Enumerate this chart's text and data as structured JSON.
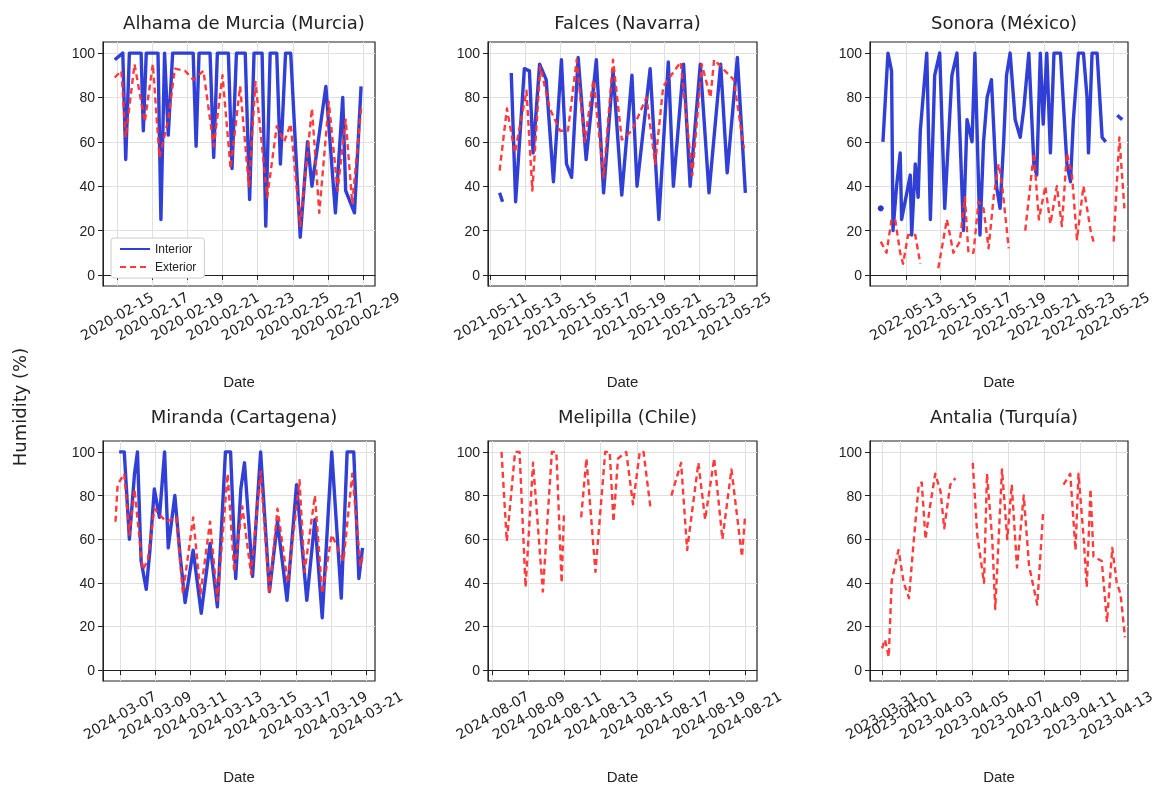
{
  "chart_data": [
    {
      "type": "line",
      "title": "Alhama de Murcia (Murcia)",
      "xlabel": "Date",
      "ylabel": "Humidity (%)",
      "xlim": [
        "2020-02-14T05:00",
        "2020-02-29T16:00"
      ],
      "xticks": [
        "2020-02-15",
        "2020-02-17",
        "2020-02-19",
        "2020-02-21",
        "2020-02-23",
        "2020-02-25",
        "2020-02-27",
        "2020-02-29"
      ],
      "ylim": [
        -5,
        105
      ],
      "yticks": [
        0,
        20,
        40,
        60,
        80,
        100
      ],
      "grid": true,
      "marker": "none",
      "legend": "bottom left",
      "series": [
        {
          "name": "Interior",
          "color": "#2536d4",
          "line_style": "solid",
          "x": [
            "2020-02-14T21:00",
            "2020-02-15T08:00",
            "2020-02-15T12:00",
            "2020-02-15T17:00",
            "2020-02-16T09:00",
            "2020-02-16T12:00",
            "2020-02-16T16:00",
            "2020-02-17T08:00",
            "2020-02-17T12:00",
            "2020-02-17T17:00",
            "2020-02-17T22:00",
            "2020-02-18T04:00",
            "2020-02-19T08:00",
            "2020-02-19T12:00",
            "2020-02-19T16:00",
            "2020-02-20T07:00",
            "2020-02-20T12:00",
            "2020-02-20T17:00",
            "2020-02-21T08:00",
            "2020-02-21T13:00",
            "2020-02-21T19:00",
            "2020-02-22T07:00",
            "2020-02-22T13:00",
            "2020-02-22T19:00",
            "2020-02-23T06:00",
            "2020-02-23T11:00",
            "2020-02-23T17:00",
            "2020-02-24T02:00",
            "2020-02-24T07:00",
            "2020-02-24T14:00",
            "2020-02-24T21:00",
            "2020-02-25T10:00",
            "2020-02-25T20:00",
            "2020-02-26T02:00",
            "2020-02-26T21:00",
            "2020-02-27T10:00",
            "2020-02-27T20:00",
            "2020-02-28T00:00",
            "2020-02-28T12:00",
            "2020-02-28T21:00"
          ],
          "values": [
            97,
            100,
            52,
            100,
            100,
            65,
            100,
            100,
            25,
            100,
            63,
            100,
            100,
            58,
            100,
            100,
            53,
            100,
            100,
            48,
            100,
            100,
            34,
            100,
            100,
            22,
            100,
            100,
            50,
            100,
            100,
            17,
            60,
            40,
            85,
            28,
            80,
            38,
            28,
            85
          ]
        },
        {
          "name": "Exterior",
          "color": "#ff3030",
          "line_style": "dashed",
          "x": [
            "2020-02-14T21:00",
            "2020-02-15T06:00",
            "2020-02-15T12:00",
            "2020-02-16T00:00",
            "2020-02-16T14:00",
            "2020-02-17T01:00",
            "2020-02-17T10:00",
            "2020-02-17T22:00",
            "2020-02-18T07:00",
            "2020-02-18T21:00",
            "2020-02-19T08:00",
            "2020-02-19T22:00",
            "2020-02-20T12:00",
            "2020-02-21T00:00",
            "2020-02-21T11:00",
            "2020-02-22T00:00",
            "2020-02-22T12:00",
            "2020-02-22T21:00",
            "2020-02-23T13:00",
            "2020-02-24T02:00",
            "2020-02-24T12:00",
            "2020-02-24T21:00",
            "2020-02-25T10:00",
            "2020-02-26T02:00",
            "2020-02-26T12:00",
            "2020-02-27T01:00",
            "2020-02-27T13:00",
            "2020-02-28T00:00",
            "2020-02-28T09:00",
            "2020-02-28T21:00"
          ],
          "values": [
            89,
            92,
            62,
            95,
            69,
            95,
            53,
            70,
            93,
            92,
            88,
            92,
            58,
            90,
            48,
            85,
            40,
            87,
            35,
            67,
            60,
            68,
            22,
            75,
            28,
            78,
            38,
            70,
            32,
            75
          ]
        }
      ]
    },
    {
      "type": "line",
      "title": "Falces (Navarra)",
      "xlabel": "Date",
      "xlim": [
        "2021-05-10T21:00",
        "2021-05-26T07:00"
      ],
      "xticks": [
        "2021-05-11",
        "2021-05-13",
        "2021-05-15",
        "2021-05-17",
        "2021-05-19",
        "2021-05-21",
        "2021-05-23",
        "2021-05-25"
      ],
      "ylim": [
        -5,
        105
      ],
      "yticks": [
        0,
        20,
        40,
        60,
        80,
        100
      ],
      "grid": true,
      "marker": "none",
      "series": [
        {
          "color": "#2536d4",
          "line_style": "solid",
          "x": [
            "2021-05-11T13:00",
            "2021-05-11T17:00",
            "2021-05-11T23:00",
            "2021-05-12T05:00",
            "2021-05-12T11:00",
            "2021-05-12T23:00",
            "2021-05-13T06:00",
            "2021-05-13T11:00",
            "2021-05-13T20:00",
            "2021-05-14T05:00",
            "2021-05-14T15:00",
            "2021-05-15T02:00",
            "2021-05-15T09:00",
            "2021-05-15T16:00",
            "2021-05-16T01:00",
            "2021-05-16T12:00",
            "2021-05-17T02:00",
            "2021-05-17T12:00",
            "2021-05-18T01:00",
            "2021-05-18T13:00",
            "2021-05-19T03:00",
            "2021-05-19T10:00",
            "2021-05-20T04:00",
            "2021-05-20T16:00",
            "2021-05-21T05:00",
            "2021-05-21T12:00",
            "2021-05-22T02:00",
            "2021-05-22T11:00",
            "2021-05-23T01:00",
            "2021-05-23T13:00",
            "2021-05-24T05:00",
            "2021-05-24T14:00",
            "2021-05-25T04:00",
            "2021-05-25T15:00"
          ],
          "values": [
            37,
            33,
            null,
            91,
            33,
            93,
            92,
            55,
            95,
            88,
            42,
            97,
            50,
            44,
            98,
            52,
            97,
            37,
            92,
            36,
            90,
            40,
            93,
            25,
            96,
            40,
            95,
            40,
            95,
            37,
            95,
            46,
            98,
            37
          ]
        },
        {
          "color": "#ff3030",
          "line_style": "dashed",
          "x": [
            "2021-05-11T13:00",
            "2021-05-11T23:00",
            "2021-05-12T10:00",
            "2021-05-13T02:00",
            "2021-05-13T10:00",
            "2021-05-13T21:00",
            "2021-05-14T10:00",
            "2021-05-15T00:00",
            "2021-05-15T11:00",
            "2021-05-15T23:00",
            "2021-05-16T10:00",
            "2021-05-16T22:00",
            "2021-05-17T12:00",
            "2021-05-18T01:00",
            "2021-05-18T13:00",
            "2021-05-19T03:00",
            "2021-05-19T23:00",
            "2021-05-20T11:00",
            "2021-05-20T22:00",
            "2021-05-21T22:00",
            "2021-05-22T14:00",
            "2021-05-23T03:00",
            "2021-05-23T15:00",
            "2021-05-23T20:00",
            "2021-05-24T23:00",
            "2021-05-25T13:00"
          ],
          "values": [
            47,
            75,
            55,
            83,
            38,
            94,
            75,
            65,
            65,
            97,
            60,
            88,
            44,
            97,
            61,
            65,
            80,
            50,
            85,
            96,
            45,
            95,
            80,
            97,
            88,
            57
          ]
        }
      ]
    },
    {
      "type": "line",
      "title": "Sonora (México)",
      "xlabel": "Date",
      "xlim": [
        "2022-05-10T22:00",
        "2022-05-25T21:00"
      ],
      "xticks": [
        "2022-05-13",
        "2022-05-15",
        "2022-05-17",
        "2022-05-19",
        "2022-05-21",
        "2022-05-23",
        "2022-05-25"
      ],
      "ylim": [
        -5,
        105
      ],
      "yticks": [
        0,
        20,
        40,
        60,
        80,
        100
      ],
      "grid": true,
      "marker": "none",
      "series": [
        {
          "color": "#2536d4",
          "line_style": "solid",
          "x": [
            "2022-05-11T13:00",
            "2022-05-11T14:00",
            "2022-05-11T16:00",
            "2022-05-11T23:00",
            "2022-05-12T04:00",
            "2022-05-12T06:00",
            "2022-05-12T11:00",
            "2022-05-12T16:00",
            "2022-05-12T18:00",
            "2022-05-13T06:00",
            "2022-05-13T08:00",
            "2022-05-13T13:00",
            "2022-05-13T17:00",
            "2022-05-13T20:00",
            "2022-05-14T05:00",
            "2022-05-14T10:00",
            "2022-05-14T16:00",
            "2022-05-14T23:00",
            "2022-05-15T06:00",
            "2022-05-15T16:00",
            "2022-05-15T23:00",
            "2022-05-16T08:00",
            "2022-05-16T13:00",
            "2022-05-16T20:00",
            "2022-05-17T00:00",
            "2022-05-17T07:00",
            "2022-05-17T12:00",
            "2022-05-17T17:00",
            "2022-05-17T23:00",
            "2022-05-18T06:00",
            "2022-05-18T11:00",
            "2022-05-18T16:00",
            "2022-05-18T20:00",
            "2022-05-19T01:00",
            "2022-05-19T08:00",
            "2022-05-19T15:00",
            "2022-05-19T20:00",
            "2022-05-20T03:00",
            "2022-05-20T10:00",
            "2022-05-20T14:00",
            "2022-05-20T19:00",
            "2022-05-20T23:00",
            "2022-05-21T04:00",
            "2022-05-21T09:00",
            "2022-05-21T14:00",
            "2022-05-21T23:00",
            "2022-05-22T08:00",
            "2022-05-22T13:00",
            "2022-05-22T17:00",
            "2022-05-23T00:00",
            "2022-05-23T07:00",
            "2022-05-23T12:00",
            "2022-05-23T14:00",
            "2022-05-23T19:00",
            "2022-05-24T02:00",
            "2022-05-24T09:00",
            "2022-05-24T14:00",
            "2022-05-24T22:00",
            "2022-05-25T06:00",
            "2022-05-25T13:00"
          ],
          "values": [
            30,
            null,
            60,
            100,
            92,
            20,
            40,
            55,
            25,
            45,
            18,
            50,
            35,
            65,
            100,
            25,
            90,
            100,
            30,
            90,
            100,
            20,
            70,
            60,
            100,
            18,
            60,
            80,
            88,
            40,
            30,
            60,
            90,
            100,
            70,
            62,
            75,
            100,
            50,
            45,
            100,
            68,
            100,
            55,
            100,
            100,
            50,
            42,
            70,
            100,
            100,
            80,
            55,
            100,
            100,
            62,
            60,
            null,
            72,
            70
          ]
        },
        {
          "color": "#ff3030",
          "line_style": "dashed",
          "x": [
            "2022-05-11T13:00",
            "2022-05-11T21:00",
            "2022-05-12T04:00",
            "2022-05-12T09:00",
            "2022-05-12T16:00",
            "2022-05-12T20:00",
            "2022-05-13T03:00",
            "2022-05-13T13:00",
            "2022-05-13T20:00",
            "2022-05-14T08:00",
            "2022-05-14T21:00",
            "2022-05-15T09:00",
            "2022-05-15T18:00",
            "2022-05-16T03:00",
            "2022-05-16T10:00",
            "2022-05-16T15:00",
            "2022-05-16T22:00",
            "2022-05-17T05:00",
            "2022-05-17T12:00",
            "2022-05-17T19:00",
            "2022-05-18T02:00",
            "2022-05-18T09:00",
            "2022-05-18T14:00",
            "2022-05-18T23:00",
            "2022-05-19T10:00",
            "2022-05-19T22:00",
            "2022-05-20T10:00",
            "2022-05-20T17:00",
            "2022-05-21T02:00",
            "2022-05-21T09:00",
            "2022-05-21T18:00",
            "2022-05-22T01:00",
            "2022-05-22T08:00",
            "2022-05-22T15:00",
            "2022-05-22T22:00",
            "2022-05-23T07:00",
            "2022-05-23T17:00",
            "2022-05-23T21:00",
            "2022-05-24T12:00",
            "2022-05-25T01:00",
            "2022-05-25T09:00",
            "2022-05-25T16:00"
          ],
          "values": [
            15,
            10,
            25,
            25,
            10,
            5,
            18,
            18,
            5,
            null,
            3,
            25,
            10,
            15,
            35,
            10,
            10,
            33,
            30,
            12,
            35,
            50,
            40,
            12,
            null,
            20,
            55,
            25,
            40,
            23,
            40,
            22,
            55,
            45,
            16,
            40,
            20,
            15,
            null,
            15,
            62,
            30
          ]
        }
      ]
    },
    {
      "type": "line",
      "title": "Miranda (Cartagena)",
      "xlabel": "Date",
      "xlim": [
        "2024-03-06T01:00",
        "2024-03-21T12:00"
      ],
      "xticks": [
        "2024-03-07",
        "2024-03-09",
        "2024-03-11",
        "2024-03-13",
        "2024-03-15",
        "2024-03-17",
        "2024-03-19",
        "2024-03-21"
      ],
      "ylim": [
        -5,
        105
      ],
      "yticks": [
        0,
        20,
        40,
        60,
        80,
        100
      ],
      "grid": true,
      "marker": "none",
      "series": [
        {
          "color": "#2536d4",
          "line_style": "solid",
          "x": [
            "2024-03-06T23:00",
            "2024-03-07T06:00",
            "2024-03-07T13:00",
            "2024-03-07T20:00",
            "2024-03-08T00:00",
            "2024-03-08T05:00",
            "2024-03-08T12:00",
            "2024-03-08T17:00",
            "2024-03-08T23:00",
            "2024-03-09T06:00",
            "2024-03-09T13:00",
            "2024-03-09T18:00",
            "2024-03-10T03:00",
            "2024-03-10T10:00",
            "2024-03-10T17:00",
            "2024-03-11T04:00",
            "2024-03-11T15:00",
            "2024-03-12T03:00",
            "2024-03-12T13:00",
            "2024-03-13T00:00",
            "2024-03-13T07:00",
            "2024-03-13T14:00",
            "2024-03-13T21:00",
            "2024-03-14T02:00",
            "2024-03-14T13:00",
            "2024-03-15T00:00",
            "2024-03-15T12:00",
            "2024-03-15T23:00",
            "2024-03-16T12:00",
            "2024-03-17T01:00",
            "2024-03-17T15:00",
            "2024-03-18T02:00",
            "2024-03-18T12:00",
            "2024-03-19T01:00",
            "2024-03-19T14:00",
            "2024-03-19T22:00",
            "2024-03-20T07:00",
            "2024-03-20T14:00",
            "2024-03-20T19:00"
          ],
          "values": [
            100,
            100,
            60,
            90,
            100,
            50,
            37,
            55,
            83,
            70,
            100,
            56,
            80,
            53,
            31,
            55,
            26,
            58,
            29,
            100,
            100,
            42,
            83,
            95,
            43,
            100,
            36,
            68,
            32,
            85,
            32,
            69,
            24,
            100,
            33,
            100,
            100,
            42,
            56
          ]
        },
        {
          "color": "#ff3030",
          "line_style": "dashed",
          "x": [
            "2024-03-06T18:00",
            "2024-03-06T21:00",
            "2024-03-07T06:00",
            "2024-03-07T13:00",
            "2024-03-07T20:00",
            "2024-03-08T07:00",
            "2024-03-08T14:00",
            "2024-03-08T23:00",
            "2024-03-09T15:00",
            "2024-03-10T05:00",
            "2024-03-10T14:00",
            "2024-03-11T04:00",
            "2024-03-11T14:00",
            "2024-03-12T03:00",
            "2024-03-12T13:00",
            "2024-03-13T03:00",
            "2024-03-13T12:00",
            "2024-03-13T23:00",
            "2024-03-14T11:00",
            "2024-03-15T00:00",
            "2024-03-15T12:00",
            "2024-03-15T23:00",
            "2024-03-16T13:00",
            "2024-03-17T05:00",
            "2024-03-17T12:00",
            "2024-03-18T02:00",
            "2024-03-18T12:00",
            "2024-03-19T01:00",
            "2024-03-19T17:00",
            "2024-03-20T05:00",
            "2024-03-20T16:00",
            "2024-03-20T19:00"
          ],
          "values": [
            68,
            85,
            90,
            62,
            83,
            46,
            50,
            74,
            68,
            70,
            35,
            70,
            35,
            68,
            32,
            90,
            45,
            75,
            44,
            91,
            35,
            74,
            40,
            87,
            45,
            80,
            35,
            62,
            50,
            90,
            48,
            52
          ]
        }
      ]
    },
    {
      "type": "line",
      "title": "Melipilla (Chile)",
      "xlabel": "Date",
      "xlim": [
        "2024-08-06T18:00",
        "2024-08-21T16:00"
      ],
      "xticks": [
        "2024-08-07",
        "2024-08-09",
        "2024-08-11",
        "2024-08-13",
        "2024-08-15",
        "2024-08-17",
        "2024-08-19",
        "2024-08-21"
      ],
      "ylim": [
        -5,
        105
      ],
      "yticks": [
        0,
        20,
        40,
        60,
        80,
        100
      ],
      "grid": true,
      "marker": "none",
      "series": [
        {
          "color": "#ff3030",
          "line_style": "dashed",
          "x": [
            "2024-08-07T12:00",
            "2024-08-07T19:00",
            "2024-08-08T06:00",
            "2024-08-08T12:00",
            "2024-08-08T20:00",
            "2024-08-09T06:00",
            "2024-08-09T19:00",
            "2024-08-10T07:00",
            "2024-08-10T13:00",
            "2024-08-10T20:00",
            "2024-08-10T23:00",
            "2024-08-11T10:00",
            "2024-08-11T22:00",
            "2024-08-12T05:00",
            "2024-08-12T17:00",
            "2024-08-13T06:00",
            "2024-08-13T12:00",
            "2024-08-13T17:00",
            "2024-08-13T23:00",
            "2024-08-14T10:00",
            "2024-08-14T19:00",
            "2024-08-15T04:00",
            "2024-08-15T09:00",
            "2024-08-15T18:00",
            "2024-08-16T08:00",
            "2024-08-16T22:00",
            "2024-08-17T11:00",
            "2024-08-17T19:00",
            "2024-08-18T10:00",
            "2024-08-18T19:00",
            "2024-08-19T07:00",
            "2024-08-19T18:00",
            "2024-08-20T06:00",
            "2024-08-20T20:00",
            "2024-08-21T00:00"
          ],
          "values": [
            100,
            59,
            100,
            100,
            38,
            95,
            36,
            100,
            100,
            40,
            71,
            null,
            70,
            97,
            45,
            100,
            100,
            68,
            97,
            100,
            76,
            100,
            100,
            75,
            null,
            80,
            95,
            55,
            95,
            69,
            97,
            60,
            92,
            52,
            70
          ]
        }
      ]
    },
    {
      "type": "line",
      "title": "Antalia (Turquía)",
      "xlabel": "Date",
      "xlim": [
        "2023-03-30T08:00",
        "2023-04-13T16:00"
      ],
      "xticks": [
        "2023-03-31",
        "2023-04-01",
        "2023-04-03",
        "2023-04-05",
        "2023-04-07",
        "2023-04-09",
        "2023-04-11",
        "2023-04-13"
      ],
      "ylim": [
        -5,
        105
      ],
      "yticks": [
        0,
        20,
        40,
        60,
        80,
        100
      ],
      "grid": true,
      "marker": "none",
      "series": [
        {
          "color": "#ff3030",
          "line_style": "dashed",
          "x": [
            "2023-03-31T00:00",
            "2023-03-31T04:00",
            "2023-03-31T09:00",
            "2023-03-31T13:00",
            "2023-03-31T22:00",
            "2023-04-01T05:00",
            "2023-04-01T12:00",
            "2023-04-01T18:00",
            "2023-04-02T01:00",
            "2023-04-02T05:00",
            "2023-04-02T10:00",
            "2023-04-02T16:00",
            "2023-04-02T23:00",
            "2023-04-03T06:00",
            "2023-04-03T11:00",
            "2023-04-03T19:00",
            "2023-04-04T02:00",
            "2023-04-04T12:00",
            "2023-04-05T01:00",
            "2023-04-05T07:00",
            "2023-04-05T16:00",
            "2023-04-05T20:00",
            "2023-04-06T03:00",
            "2023-04-06T07:00",
            "2023-04-06T16:00",
            "2023-04-06T23:00",
            "2023-04-07T05:00",
            "2023-04-07T12:00",
            "2023-04-07T21:00",
            "2023-04-08T04:00",
            "2023-04-08T15:00",
            "2023-04-08T23:00",
            "2023-04-09T12:00",
            "2023-04-10T02:00",
            "2023-04-10T11:00",
            "2023-04-10T18:00",
            "2023-04-10T22:00",
            "2023-04-11T05:00",
            "2023-04-11T09:00",
            "2023-04-11T14:00",
            "2023-04-11T18:00",
            "2023-04-12T05:00",
            "2023-04-12T12:00",
            "2023-04-12T19:00",
            "2023-04-13T01:00",
            "2023-04-13T06:00",
            "2023-04-13T12:00"
          ],
          "values": [
            10,
            14,
            6,
            41,
            55,
            40,
            33,
            58,
            85,
            86,
            60,
            75,
            90,
            82,
            65,
            85,
            88,
            null,
            95,
            62,
            40,
            90,
            60,
            28,
            92,
            60,
            85,
            47,
            80,
            48,
            30,
            73,
            null,
            85,
            90,
            55,
            90,
            60,
            38,
            83,
            52,
            50,
            22,
            56,
            40,
            35,
            15
          ]
        }
      ]
    }
  ]
}
